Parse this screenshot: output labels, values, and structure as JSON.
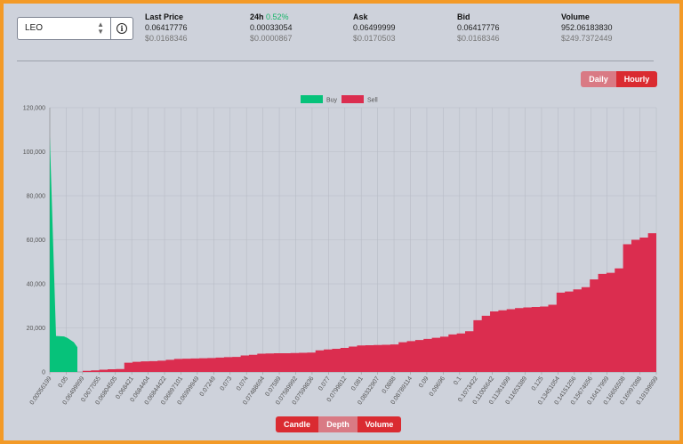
{
  "pair_select": {
    "value": "LEO"
  },
  "stats": [
    {
      "label": "Last Price",
      "change": "",
      "value": "0.06417776",
      "usd": "$0.0168346"
    },
    {
      "label": "24h",
      "change": "0.52%",
      "value": "0.00033054",
      "usd": "$0.0000867"
    },
    {
      "label": "Ask",
      "change": "",
      "value": "0.06499999",
      "usd": "$0.0170503"
    },
    {
      "label": "Bid",
      "change": "",
      "value": "0.06417776",
      "usd": "$0.0168346"
    },
    {
      "label": "Volume",
      "change": "",
      "value": "952.06183830",
      "usd": "$249.7372449"
    }
  ],
  "interval_toggle": {
    "daily": "Daily",
    "hourly": "Hourly",
    "active": "Hourly"
  },
  "chart_view": {
    "candle": "Candle",
    "depth": "Depth",
    "volume": "Volume",
    "active": "Depth"
  },
  "colors": {
    "buy": "#06c27a",
    "sell": "#db2d4f",
    "active_button": "#da2b31",
    "inactive_button": "#d97a84",
    "frame": "#f39a27"
  },
  "chart_data": {
    "type": "area",
    "legend": [
      "Buy",
      "Sell"
    ],
    "legend_position": "top-center",
    "ylim": [
      0,
      120000
    ],
    "yticks": [
      "0",
      "20,000",
      "40,000",
      "60,000",
      "80,000",
      "100,000",
      "120,000"
    ],
    "grid": true,
    "xlim": [
      0.0005,
      0.2
    ],
    "xticks": [
      "0.00056199",
      "0.05",
      "0.06499999",
      "0.0677055",
      "0.06804505",
      "0.068421",
      "0.0684404",
      "0.06844422",
      "0.06897101",
      "0.06999949",
      "0.07249",
      "0.073",
      "0.074",
      "0.07488694",
      "0.07589",
      "0.07589992",
      "0.07599836",
      "0.077",
      "0.0799812",
      "0.081",
      "0.08332907",
      "0.0888",
      "0.08789114",
      "0.09",
      "0.09696",
      "0.1",
      "0.1073422",
      "0.11006642",
      "0.11361999",
      "0.11653389",
      "0.125",
      "0.13451054",
      "0.14151256",
      "0.15674656",
      "0.16417999",
      "0.16656508",
      "0.16997088",
      "0.19199999"
    ],
    "series": [
      {
        "name": "Buy",
        "y": [
          107000,
          16300,
          16100,
          15400,
          13500,
          11200
        ]
      },
      {
        "name": "Sell",
        "y": [
          500,
          700,
          1000,
          1200,
          1300,
          4200,
          4600,
          4800,
          4900,
          5100,
          5500,
          5900,
          6000,
          6100,
          6200,
          6300,
          6500,
          6700,
          6800,
          7500,
          7800,
          8300,
          8400,
          8500,
          8500,
          8600,
          8700,
          8800,
          9800,
          10200,
          10500,
          10900,
          11500,
          12000,
          12100,
          12200,
          12300,
          12500,
          13500,
          14000,
          14500,
          15000,
          15500,
          16000,
          17000,
          17500,
          18500,
          23500,
          25500,
          27500,
          28000,
          28500,
          29000,
          29300,
          29500,
          29700,
          30500,
          36000,
          36500,
          37500,
          38500,
          42000,
          44500,
          45000,
          47000,
          58000,
          60000,
          61000,
          63000
        ]
      }
    ]
  }
}
